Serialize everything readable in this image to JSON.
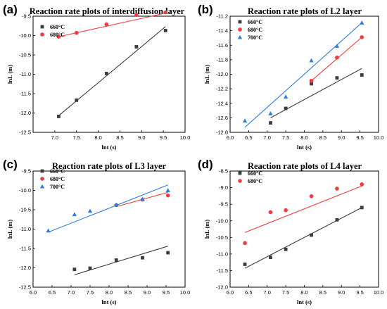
{
  "chart_data": [
    {
      "type": "scatter",
      "panel_label": "(a)",
      "title": "Reaction rate plots of interdiffusion layer",
      "xlabel": "lnt (s)",
      "ylabel": "lnL (m)",
      "xlim": [
        6.5,
        10.0
      ],
      "ylim": [
        -12.5,
        -9.5
      ],
      "xticks": [
        "7.0",
        "7.5",
        "8.0",
        "8.5",
        "9.0",
        "9.5",
        "10.0"
      ],
      "yticks": [
        "-12.5",
        "-12.0",
        "-11.5",
        "-11.0",
        "-10.5",
        "-10.0",
        "-9.5"
      ],
      "legend_position": "top-left",
      "series": [
        {
          "name": "660°C",
          "marker": "square",
          "color": "#3c3c3c",
          "x": [
            7.09,
            7.5,
            8.19,
            8.88,
            9.55
          ],
          "y": [
            -12.09,
            -11.67,
            -10.98,
            -10.29,
            -9.87
          ],
          "fit": [
            [
              7.09,
              -12.07
            ],
            [
              9.55,
              -9.77
            ]
          ]
        },
        {
          "name": "680°C",
          "marker": "circle",
          "color": "#f03c3c",
          "x": [
            7.09,
            7.5,
            8.19,
            8.88,
            9.55
          ],
          "y": [
            -10.03,
            -9.93,
            -9.71,
            -9.47,
            -9.4
          ],
          "fit": [
            [
              7.09,
              -10.03
            ],
            [
              9.55,
              -9.42
            ]
          ]
        }
      ]
    },
    {
      "type": "scatter",
      "panel_label": "(b)",
      "title": "Reaction rate plots of L2 layer",
      "xlabel": "lnt (s)",
      "ylabel": "lnL (m)",
      "xlim": [
        6.0,
        10.0
      ],
      "ylim": [
        -12.8,
        -11.2
      ],
      "xticks": [
        "6.0",
        "6.5",
        "7.0",
        "7.5",
        "8.0",
        "8.5",
        "9.0",
        "9.5",
        "10.0"
      ],
      "yticks": [
        "-12.8",
        "-12.6",
        "-12.4",
        "-12.2",
        "-12.0",
        "-11.8",
        "-11.6",
        "-11.4",
        "-11.2"
      ],
      "legend_position": "top-left",
      "series": [
        {
          "name": "660°C",
          "marker": "square",
          "color": "#3c3c3c",
          "x": [
            7.09,
            7.5,
            8.19,
            8.88,
            9.55
          ],
          "y": [
            -12.67,
            -12.47,
            -12.13,
            -12.05,
            -12.01
          ],
          "fit": [
            [
              7.09,
              -12.6
            ],
            [
              9.55,
              -11.92
            ]
          ]
        },
        {
          "name": "680°C",
          "marker": "circle",
          "color": "#f03c3c",
          "x": [
            8.19,
            8.88,
            9.55
          ],
          "y": [
            -12.09,
            -11.77,
            -11.49
          ],
          "fit": [
            [
              8.19,
              -12.09
            ],
            [
              9.55,
              -11.49
            ]
          ]
        },
        {
          "name": "700°C",
          "marker": "triangle",
          "color": "#2f7de1",
          "x": [
            6.4,
            7.09,
            7.5,
            8.19,
            8.88,
            9.55
          ],
          "y": [
            -12.64,
            -12.54,
            -12.31,
            -11.81,
            -11.61,
            -11.29
          ],
          "fit": [
            [
              6.4,
              -12.73
            ],
            [
              9.55,
              -11.29
            ]
          ]
        }
      ]
    },
    {
      "type": "scatter",
      "panel_label": "(c)",
      "title": "Reaction rate plots of L3 layer",
      "xlabel": "lnt (s)",
      "ylabel": "lnL (m)",
      "xlim": [
        6.0,
        10.0
      ],
      "ylim": [
        -12.5,
        -9.5
      ],
      "xticks": [
        "6.0",
        "6.5",
        "7.0",
        "7.5",
        "8.0",
        "8.5",
        "9.0",
        "9.5",
        "10.0"
      ],
      "yticks": [
        "-12.5",
        "-12.0",
        "-11.5",
        "-11.0",
        "-10.5",
        "-10.0",
        "-9.5"
      ],
      "legend_position": "top-left",
      "series": [
        {
          "name": "660°C",
          "marker": "square",
          "color": "#3c3c3c",
          "x": [
            7.09,
            7.5,
            8.19,
            8.88,
            9.55
          ],
          "y": [
            -12.04,
            -12.01,
            -11.8,
            -11.74,
            -11.61
          ],
          "fit": [
            [
              7.09,
              -12.18
            ],
            [
              9.55,
              -11.44
            ]
          ]
        },
        {
          "name": "680°C",
          "marker": "circle",
          "color": "#f03c3c",
          "x": [
            8.19,
            8.88,
            9.55
          ],
          "y": [
            -10.38,
            -10.24,
            -10.13
          ],
          "fit": [
            [
              8.19,
              -10.42
            ],
            [
              9.55,
              -10.05
            ]
          ]
        },
        {
          "name": "700°C",
          "marker": "triangle",
          "color": "#2f7de1",
          "x": [
            6.4,
            7.09,
            7.5,
            8.19,
            8.88,
            9.55
          ],
          "y": [
            -11.04,
            -10.62,
            -10.53,
            -10.37,
            -10.22,
            -10.0
          ],
          "fit": [
            [
              6.4,
              -11.08
            ],
            [
              9.55,
              -9.86
            ]
          ]
        }
      ]
    },
    {
      "type": "scatter",
      "panel_label": "(d)",
      "title": "Reaction rate plots of L4 layer",
      "xlabel": "lnt (s)",
      "ylabel": "lnL (m)",
      "xlim": [
        6.0,
        10.0
      ],
      "ylim": [
        -12.0,
        -8.5
      ],
      "xticks": [
        "6.0",
        "6.5",
        "7.0",
        "7.5",
        "8.0",
        "8.5",
        "9.0",
        "9.5",
        "10.0"
      ],
      "yticks": [
        "-12.0",
        "-11.5",
        "-11.0",
        "-10.5",
        "-10.0",
        "-9.5",
        "-9.0",
        "-8.5"
      ],
      "legend_position": "top-left",
      "series": [
        {
          "name": "660°C",
          "marker": "square",
          "color": "#3c3c3c",
          "x": [
            6.4,
            7.09,
            7.5,
            8.19,
            8.88,
            9.55
          ],
          "y": [
            -11.31,
            -11.1,
            -10.86,
            -10.43,
            -9.97,
            -9.6
          ],
          "fit": [
            [
              6.4,
              -11.43
            ],
            [
              9.55,
              -9.6
            ]
          ]
        },
        {
          "name": "680°C",
          "marker": "circle",
          "color": "#f03c3c",
          "x": [
            6.4,
            7.09,
            7.5,
            8.19,
            8.88,
            9.55
          ],
          "y": [
            -10.67,
            -9.74,
            -9.68,
            -9.26,
            -9.03,
            -8.9
          ],
          "fit": [
            [
              6.4,
              -10.35
            ],
            [
              9.55,
              -8.95
            ]
          ]
        }
      ]
    }
  ]
}
